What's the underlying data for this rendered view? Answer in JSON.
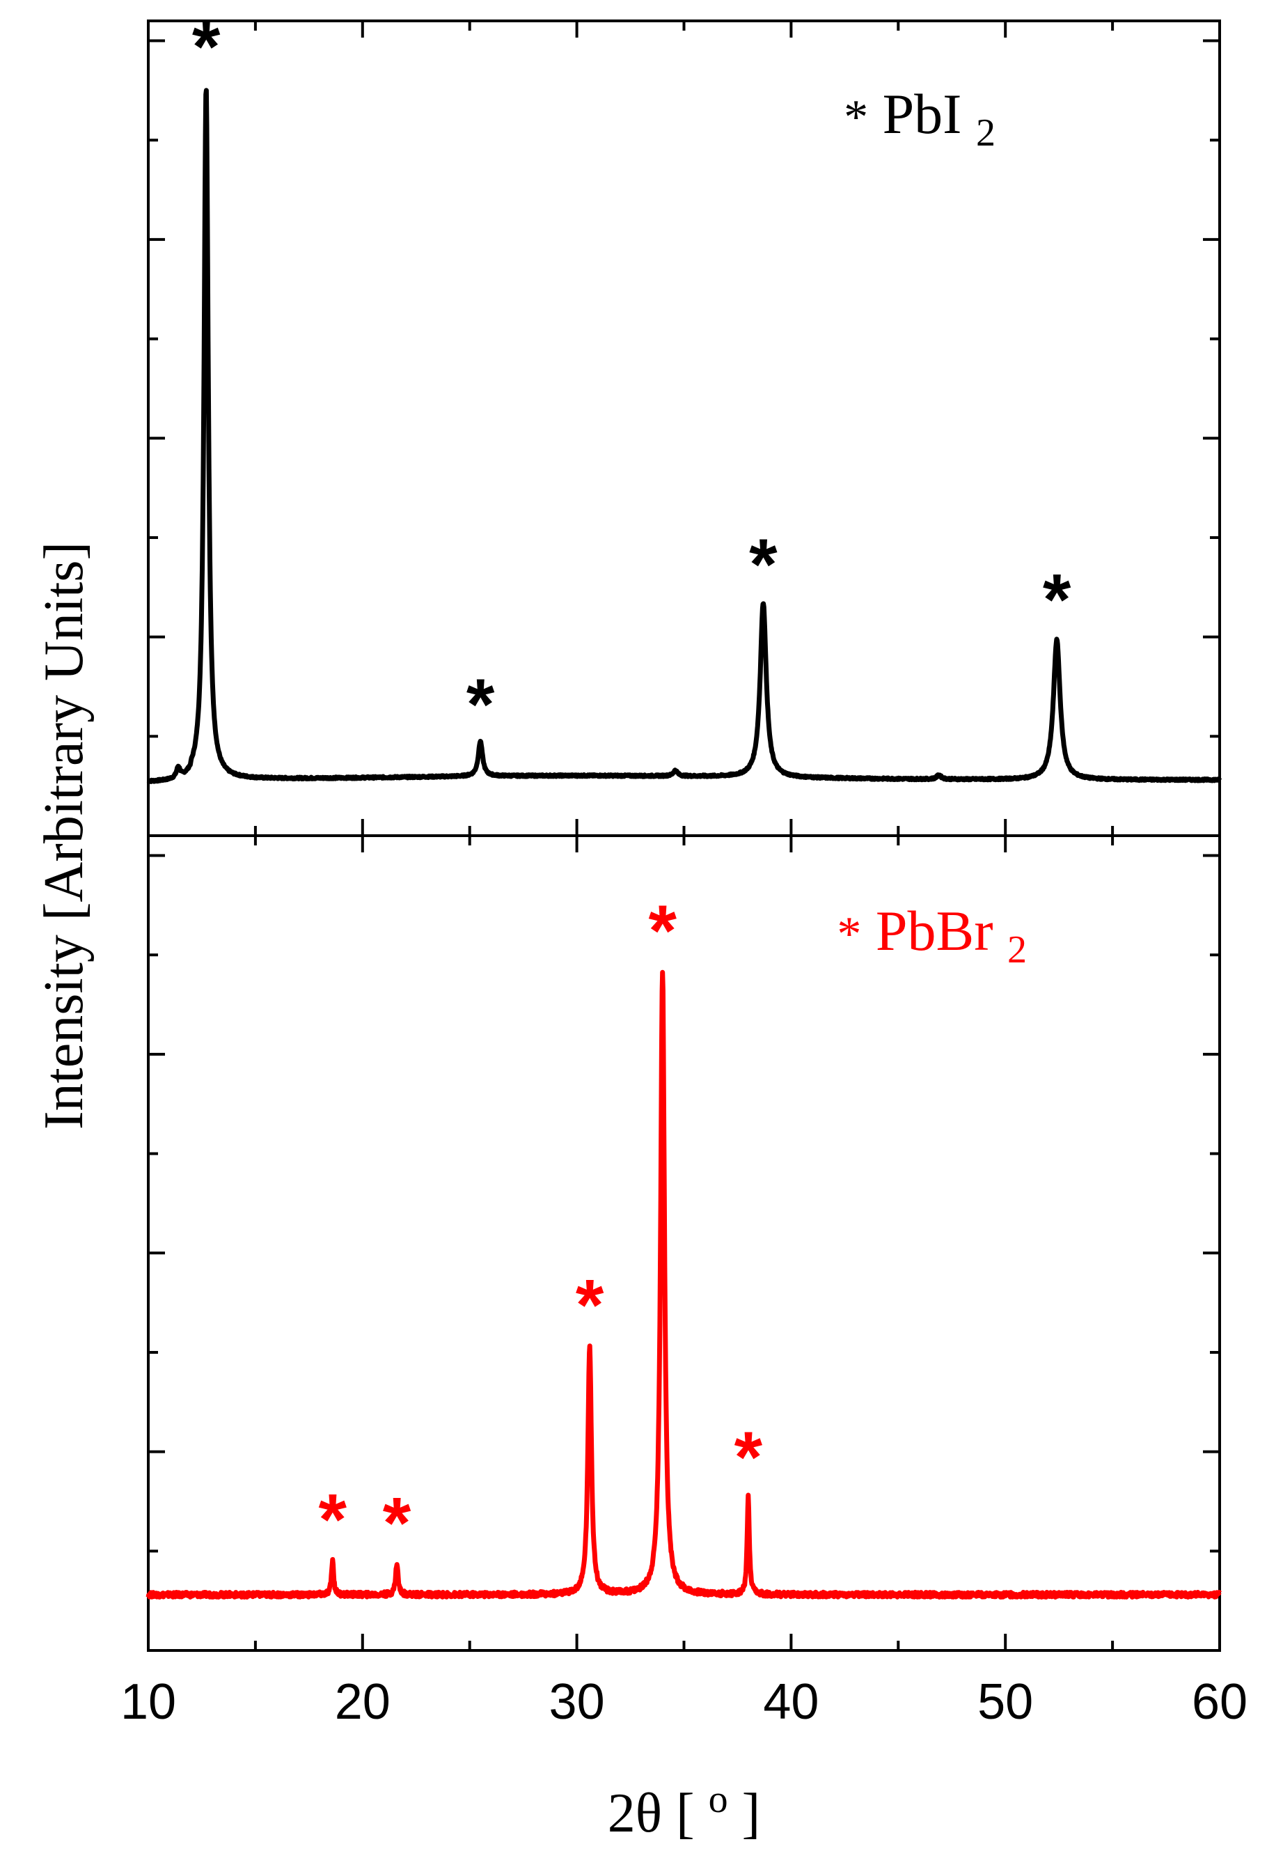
{
  "chart_data": {
    "type": "line",
    "x_axis": {
      "label": "2θ [o]",
      "label_main": "2θ [",
      "label_sup": "o",
      "label_close": "]",
      "xlim": [
        10,
        60
      ],
      "ticks": [
        10,
        20,
        30,
        40,
        50,
        60
      ],
      "tick_labels": [
        "10",
        "20",
        "30",
        "40",
        "50",
        "60"
      ]
    },
    "y_axis": {
      "label": "Intensity [Arbitrary Units]",
      "tick_labels_shown": false
    },
    "panels": [
      {
        "id": "top",
        "color": "#000000",
        "ylim": [
          0,
          100
        ],
        "legend": {
          "marker": "*",
          "text": "PbI",
          "subscript": "2",
          "position": "top-right"
        },
        "baseline": 1.0,
        "peaks": [
          {
            "x": 11.4,
            "height": 1.5,
            "width": 0.1,
            "starred": false
          },
          {
            "x": 12.7,
            "height": 99.0,
            "width": 0.12,
            "starred": true
          },
          {
            "x": 25.5,
            "height": 5.0,
            "width": 0.12,
            "starred": true
          },
          {
            "x": 34.6,
            "height": 0.8,
            "width": 0.12,
            "starred": false
          },
          {
            "x": 38.7,
            "height": 25.0,
            "width": 0.17,
            "starred": true
          },
          {
            "x": 46.9,
            "height": 0.6,
            "width": 0.12,
            "starred": false
          },
          {
            "x": 52.4,
            "height": 20.0,
            "width": 0.19,
            "starred": true
          }
        ]
      },
      {
        "id": "bottom",
        "color": "#ff0000",
        "ylim": [
          0,
          100
        ],
        "legend": {
          "marker": "*",
          "text": "PbBr",
          "subscript": "2",
          "position": "top-right"
        },
        "baseline": 0.0,
        "peaks": [
          {
            "x": 18.6,
            "height": 5.0,
            "width": 0.06,
            "starred": true
          },
          {
            "x": 21.6,
            "height": 4.5,
            "width": 0.07,
            "starred": true
          },
          {
            "x": 30.6,
            "height": 36.0,
            "width": 0.1,
            "starred": true
          },
          {
            "x": 34.0,
            "height": 90.0,
            "width": 0.11,
            "starred": true
          },
          {
            "x": 38.0,
            "height": 14.0,
            "width": 0.06,
            "starred": true
          }
        ]
      }
    ],
    "star_symbol": "*"
  }
}
